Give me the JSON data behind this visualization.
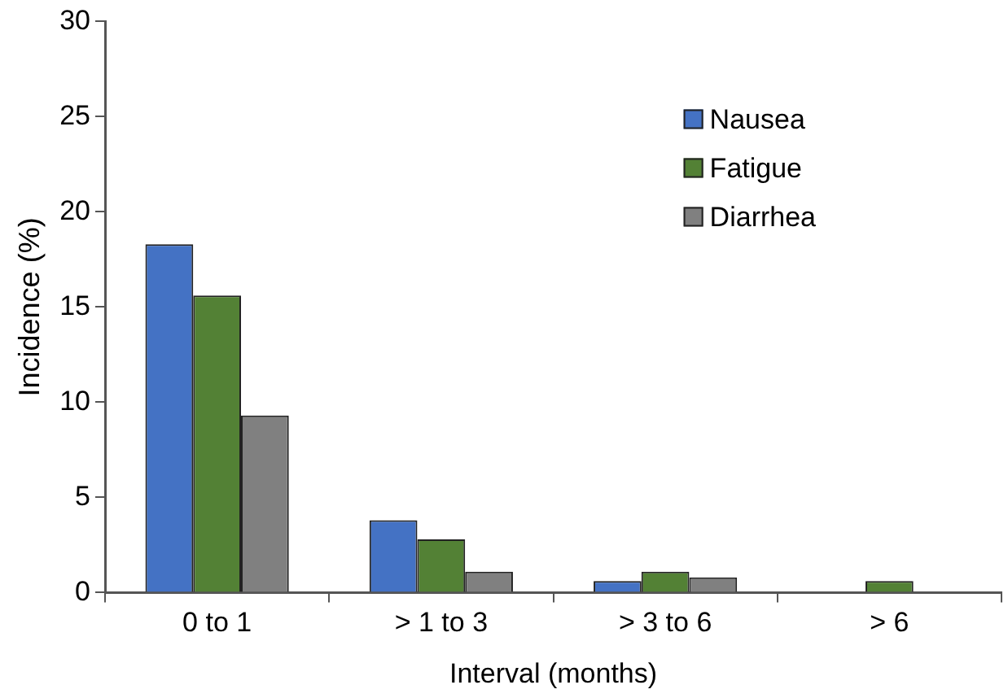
{
  "chart_data": {
    "type": "bar",
    "xlabel": "Interval (months)",
    "ylabel": "Incidence (%)",
    "categories": [
      "0 to 1",
      "> 1 to 3",
      "> 3 to 6",
      "> 6"
    ],
    "series": [
      {
        "name": "Nausea",
        "color": "#4472c4",
        "values": [
          18.3,
          3.8,
          0.6,
          null
        ]
      },
      {
        "name": "Fatigue",
        "color": "#538135",
        "values": [
          15.6,
          2.8,
          1.1,
          0.6
        ]
      },
      {
        "name": "Diarrhea",
        "color": "#808080",
        "values": [
          9.3,
          1.1,
          0.8,
          null
        ]
      }
    ],
    "ylim": [
      0,
      30
    ],
    "yticks": [
      0,
      5,
      10,
      15,
      20,
      25,
      30
    ],
    "grid": false,
    "legend": "top right"
  }
}
